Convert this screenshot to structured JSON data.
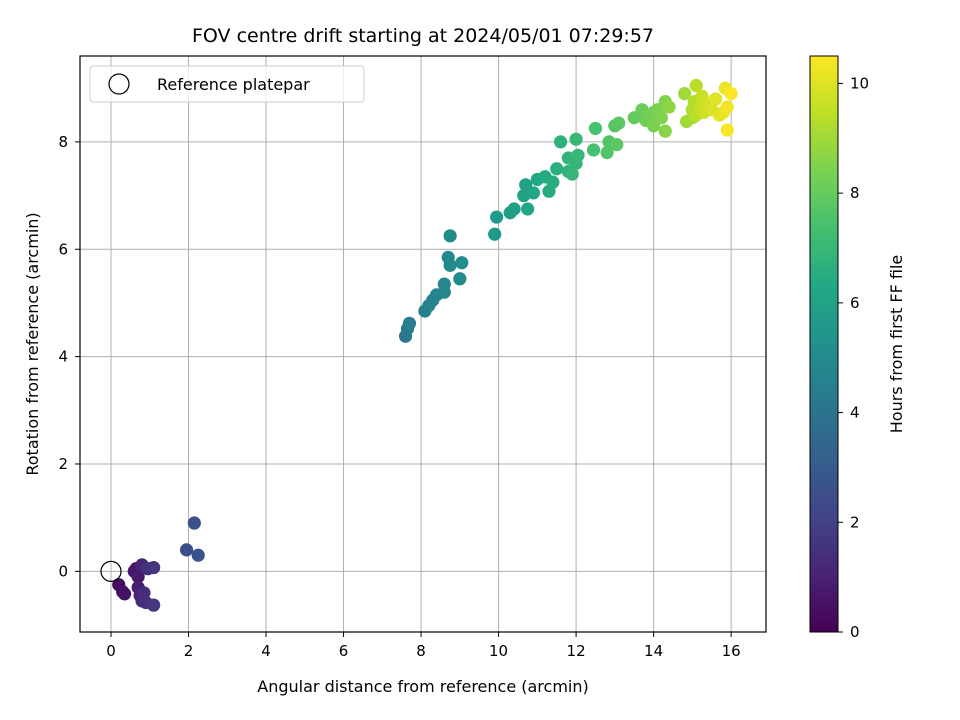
{
  "chart_data": {
    "type": "scatter",
    "title": "FOV centre drift starting at 2024/05/01 07:29:57",
    "xlabel": "Angular distance from reference (arcmin)",
    "ylabel": "Rotation from reference (arcmin)",
    "xlim": [
      -0.8,
      16.9
    ],
    "ylim": [
      -1.13,
      9.6
    ],
    "xticks": [
      0,
      2,
      4,
      6,
      8,
      10,
      12,
      14,
      16
    ],
    "yticks": [
      0,
      2,
      4,
      6,
      8
    ],
    "grid": true,
    "legend": {
      "placement": "top-left",
      "entries": [
        "Reference platepar"
      ]
    },
    "reference_point": {
      "x": 0,
      "y": 0,
      "label": "Reference platepar"
    },
    "colorbar": {
      "label": "Hours from first FF file",
      "min": 0,
      "max": 10.5,
      "ticks": [
        0,
        2,
        4,
        6,
        8,
        10
      ],
      "colormap": "viridis"
    },
    "points": [
      {
        "x": 0.2,
        "y": -0.25,
        "h": 0.3
      },
      {
        "x": 0.3,
        "y": -0.38,
        "h": 0.4
      },
      {
        "x": 0.35,
        "y": -0.42,
        "h": 0.5
      },
      {
        "x": 0.6,
        "y": 0.0,
        "h": 0.6
      },
      {
        "x": 0.65,
        "y": 0.05,
        "h": 0.7
      },
      {
        "x": 0.7,
        "y": -0.1,
        "h": 0.8
      },
      {
        "x": 0.7,
        "y": -0.3,
        "h": 0.9
      },
      {
        "x": 0.75,
        "y": -0.45,
        "h": 1.0
      },
      {
        "x": 0.8,
        "y": 0.12,
        "h": 1.1
      },
      {
        "x": 0.8,
        "y": -0.55,
        "h": 1.2
      },
      {
        "x": 0.85,
        "y": -0.4,
        "h": 1.3
      },
      {
        "x": 0.9,
        "y": -0.58,
        "h": 1.4
      },
      {
        "x": 0.95,
        "y": 0.05,
        "h": 1.5
      },
      {
        "x": 1.1,
        "y": 0.07,
        "h": 1.6
      },
      {
        "x": 1.1,
        "y": -0.63,
        "h": 1.7
      },
      {
        "x": 1.95,
        "y": 0.4,
        "h": 2.4
      },
      {
        "x": 2.15,
        "y": 0.9,
        "h": 2.6
      },
      {
        "x": 2.25,
        "y": 0.3,
        "h": 2.7
      },
      {
        "x": 7.6,
        "y": 4.38,
        "h": 4.2
      },
      {
        "x": 7.65,
        "y": 4.52,
        "h": 4.3
      },
      {
        "x": 7.7,
        "y": 4.62,
        "h": 4.4
      },
      {
        "x": 8.1,
        "y": 4.85,
        "h": 4.5
      },
      {
        "x": 8.2,
        "y": 4.95,
        "h": 4.6
      },
      {
        "x": 8.3,
        "y": 5.05,
        "h": 4.6
      },
      {
        "x": 8.4,
        "y": 5.15,
        "h": 4.7
      },
      {
        "x": 8.6,
        "y": 5.2,
        "h": 4.8
      },
      {
        "x": 8.6,
        "y": 5.35,
        "h": 4.8
      },
      {
        "x": 8.7,
        "y": 5.85,
        "h": 4.9
      },
      {
        "x": 8.75,
        "y": 5.7,
        "h": 4.9
      },
      {
        "x": 8.75,
        "y": 6.25,
        "h": 5.0
      },
      {
        "x": 9.0,
        "y": 5.45,
        "h": 5.0
      },
      {
        "x": 9.05,
        "y": 5.75,
        "h": 5.1
      },
      {
        "x": 9.9,
        "y": 6.28,
        "h": 5.6
      },
      {
        "x": 9.95,
        "y": 6.6,
        "h": 5.7
      },
      {
        "x": 10.3,
        "y": 6.68,
        "h": 5.8
      },
      {
        "x": 10.4,
        "y": 6.75,
        "h": 5.9
      },
      {
        "x": 10.65,
        "y": 7.0,
        "h": 6.0
      },
      {
        "x": 10.7,
        "y": 7.2,
        "h": 6.0
      },
      {
        "x": 10.75,
        "y": 6.75,
        "h": 6.1
      },
      {
        "x": 10.9,
        "y": 7.05,
        "h": 6.2
      },
      {
        "x": 11.0,
        "y": 7.3,
        "h": 6.3
      },
      {
        "x": 11.2,
        "y": 7.35,
        "h": 6.4
      },
      {
        "x": 11.3,
        "y": 7.08,
        "h": 6.4
      },
      {
        "x": 11.4,
        "y": 7.25,
        "h": 6.5
      },
      {
        "x": 11.5,
        "y": 7.5,
        "h": 6.6
      },
      {
        "x": 11.6,
        "y": 8.0,
        "h": 6.7
      },
      {
        "x": 11.8,
        "y": 7.45,
        "h": 6.8
      },
      {
        "x": 11.8,
        "y": 7.7,
        "h": 6.8
      },
      {
        "x": 11.9,
        "y": 7.4,
        "h": 6.9
      },
      {
        "x": 12.0,
        "y": 7.6,
        "h": 6.9
      },
      {
        "x": 12.0,
        "y": 8.05,
        "h": 7.0
      },
      {
        "x": 12.05,
        "y": 7.75,
        "h": 7.0
      },
      {
        "x": 12.45,
        "y": 7.85,
        "h": 7.4
      },
      {
        "x": 12.5,
        "y": 8.25,
        "h": 7.4
      },
      {
        "x": 12.8,
        "y": 7.8,
        "h": 7.6
      },
      {
        "x": 12.85,
        "y": 8.0,
        "h": 7.6
      },
      {
        "x": 13.0,
        "y": 8.3,
        "h": 7.7
      },
      {
        "x": 13.05,
        "y": 7.95,
        "h": 7.8
      },
      {
        "x": 13.1,
        "y": 8.35,
        "h": 7.8
      },
      {
        "x": 13.5,
        "y": 8.45,
        "h": 8.0
      },
      {
        "x": 13.7,
        "y": 8.6,
        "h": 8.1
      },
      {
        "x": 13.8,
        "y": 8.4,
        "h": 8.2
      },
      {
        "x": 13.9,
        "y": 8.5,
        "h": 8.3
      },
      {
        "x": 14.0,
        "y": 8.55,
        "h": 8.3
      },
      {
        "x": 14.0,
        "y": 8.3,
        "h": 8.4
      },
      {
        "x": 14.1,
        "y": 8.6,
        "h": 8.4
      },
      {
        "x": 14.2,
        "y": 8.45,
        "h": 8.5
      },
      {
        "x": 14.3,
        "y": 8.75,
        "h": 8.5
      },
      {
        "x": 14.3,
        "y": 8.2,
        "h": 8.6
      },
      {
        "x": 14.4,
        "y": 8.65,
        "h": 8.7
      },
      {
        "x": 14.8,
        "y": 8.9,
        "h": 9.0
      },
      {
        "x": 14.85,
        "y": 8.38,
        "h": 9.0
      },
      {
        "x": 15.0,
        "y": 8.45,
        "h": 9.1
      },
      {
        "x": 15.0,
        "y": 8.6,
        "h": 9.2
      },
      {
        "x": 15.05,
        "y": 8.75,
        "h": 9.3
      },
      {
        "x": 15.1,
        "y": 9.05,
        "h": 9.4
      },
      {
        "x": 15.1,
        "y": 8.5,
        "h": 9.4
      },
      {
        "x": 15.2,
        "y": 8.65,
        "h": 9.5
      },
      {
        "x": 15.25,
        "y": 8.85,
        "h": 9.6
      },
      {
        "x": 15.3,
        "y": 8.55,
        "h": 9.7
      },
      {
        "x": 15.3,
        "y": 8.75,
        "h": 9.7
      },
      {
        "x": 15.4,
        "y": 8.7,
        "h": 9.8
      },
      {
        "x": 15.5,
        "y": 8.6,
        "h": 9.9
      },
      {
        "x": 15.6,
        "y": 8.8,
        "h": 10.0
      },
      {
        "x": 15.7,
        "y": 8.5,
        "h": 10.1
      },
      {
        "x": 15.8,
        "y": 8.55,
        "h": 10.1
      },
      {
        "x": 15.85,
        "y": 9.0,
        "h": 10.2
      },
      {
        "x": 15.9,
        "y": 8.65,
        "h": 10.3
      },
      {
        "x": 15.9,
        "y": 8.22,
        "h": 10.4
      },
      {
        "x": 16.0,
        "y": 8.9,
        "h": 10.5
      }
    ]
  }
}
